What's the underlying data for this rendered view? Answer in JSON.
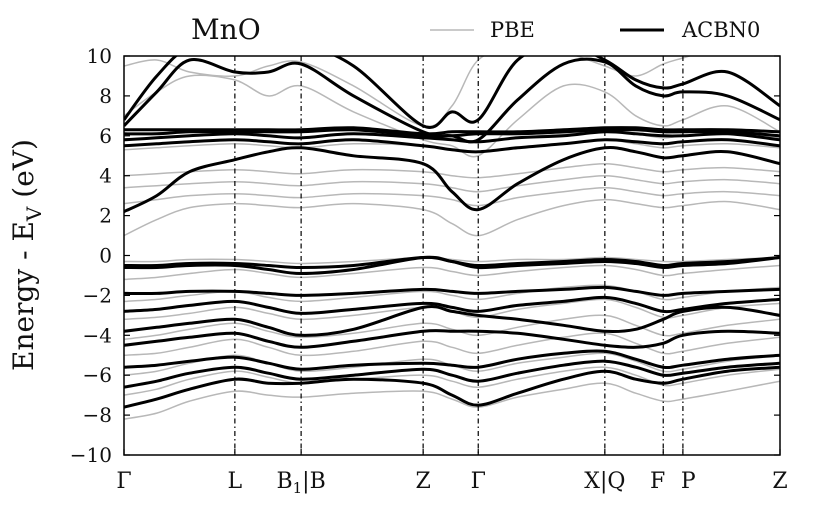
{
  "chart_data": {
    "type": "line",
    "title": "MnO",
    "ylabel": "Energy - E",
    "ylabel_sub": "V",
    "ylabel_tail": " (eV)",
    "ylim": [
      -10,
      10
    ],
    "yticks": [
      -10,
      -8,
      -6,
      -4,
      -2,
      0,
      2,
      4,
      6,
      8,
      10
    ],
    "xlim": [
      0,
      1
    ],
    "kpoints": [
      {
        "label": "Γ",
        "x": 0.0
      },
      {
        "label": "L",
        "x": 0.169
      },
      {
        "label": "B1|B",
        "x": 0.27
      },
      {
        "label": "Z",
        "x": 0.456
      },
      {
        "label": "Γ",
        "x": 0.54
      },
      {
        "label": "X|Q",
        "x": 0.733
      },
      {
        "label": "F",
        "x": 0.822
      },
      {
        "label": "P",
        "x": 0.852
      },
      {
        "label": "Z",
        "x": 1.0
      }
    ],
    "legend": {
      "position": "top-right",
      "entries": [
        {
          "name": "PBE",
          "color": "#b8b8b8"
        },
        {
          "name": "ACBN0",
          "color": "#000000"
        }
      ]
    },
    "x": [
      0,
      0.05,
      0.1,
      0.169,
      0.22,
      0.27,
      0.35,
      0.456,
      0.5,
      0.54,
      0.6,
      0.67,
      0.733,
      0.78,
      0.822,
      0.852,
      0.92,
      1.0
    ],
    "series": [
      {
        "name": "PBE",
        "color": "#b8b8b8",
        "bands": [
          [
            -8.2,
            -7.9,
            -7.3,
            -6.8,
            -7.0,
            -7.1,
            -6.9,
            -6.8,
            -7.2,
            -7.6,
            -7.1,
            -6.7,
            -6.4,
            -6.9,
            -7.3,
            -7.2,
            -6.8,
            -6.3
          ],
          [
            -7.0,
            -6.7,
            -6.2,
            -5.8,
            -6.1,
            -6.4,
            -6.2,
            -6.0,
            -6.3,
            -6.6,
            -6.2,
            -5.8,
            -5.6,
            -6.0,
            -6.5,
            -6.4,
            -6.0,
            -5.7
          ],
          [
            -6.0,
            -5.8,
            -5.4,
            -5.0,
            -5.4,
            -5.8,
            -5.6,
            -5.2,
            -5.5,
            -5.8,
            -5.4,
            -5.1,
            -4.9,
            -5.3,
            -5.8,
            -5.7,
            -5.3,
            -5.0
          ],
          [
            -5.0,
            -4.9,
            -4.6,
            -4.2,
            -4.6,
            -5.0,
            -4.8,
            -4.3,
            -4.6,
            -4.9,
            -4.5,
            -4.1,
            -3.9,
            -4.4,
            -4.9,
            -4.8,
            -4.4,
            -4.1
          ],
          [
            -4.2,
            -4.0,
            -3.7,
            -3.4,
            -3.8,
            -4.1,
            -3.9,
            -3.4,
            -3.7,
            -4.0,
            -3.6,
            -3.2,
            -3.0,
            -3.5,
            -4.0,
            -3.9,
            -3.5,
            -3.2
          ],
          [
            -3.2,
            -3.1,
            -2.9,
            -2.6,
            -2.9,
            -3.2,
            -3.0,
            -2.6,
            -2.8,
            -3.1,
            -2.7,
            -2.4,
            -2.2,
            -2.6,
            -3.1,
            -3.0,
            -2.6,
            -2.4
          ],
          [
            -2.3,
            -2.2,
            -2.0,
            -1.8,
            -2.1,
            -2.3,
            -2.1,
            -1.8,
            -2.0,
            -2.2,
            -1.9,
            -1.6,
            -1.5,
            -1.8,
            -2.2,
            -2.1,
            -1.8,
            -1.6
          ],
          [
            -1.2,
            -1.1,
            -0.9,
            -0.7,
            -0.9,
            -1.1,
            -0.9,
            -0.6,
            -0.8,
            -1.0,
            -0.8,
            -0.6,
            -0.5,
            -0.7,
            -1.0,
            -0.9,
            -0.7,
            -0.5
          ],
          [
            -0.3,
            -0.3,
            -0.2,
            -0.2,
            -0.3,
            -0.4,
            -0.3,
            -0.1,
            -0.2,
            -0.3,
            -0.2,
            -0.2,
            -0.1,
            -0.2,
            -0.3,
            -0.3,
            -0.2,
            -0.1
          ],
          [
            1.0,
            1.8,
            2.4,
            2.6,
            2.5,
            2.4,
            2.6,
            2.3,
            1.6,
            1.0,
            1.8,
            2.5,
            2.8,
            2.6,
            2.4,
            2.5,
            2.7,
            2.3
          ],
          [
            2.6,
            2.8,
            3.0,
            3.1,
            3.0,
            2.9,
            3.1,
            3.0,
            2.8,
            2.5,
            2.9,
            3.2,
            3.4,
            3.2,
            3.0,
            3.1,
            3.2,
            3.0
          ],
          [
            3.4,
            3.5,
            3.6,
            3.7,
            3.6,
            3.5,
            3.7,
            3.6,
            3.4,
            3.2,
            3.5,
            3.8,
            4.0,
            3.8,
            3.6,
            3.7,
            3.8,
            3.6
          ],
          [
            4.0,
            4.1,
            4.2,
            4.3,
            4.2,
            4.1,
            4.3,
            4.2,
            4.0,
            3.9,
            4.1,
            4.4,
            4.6,
            4.4,
            4.2,
            4.3,
            4.4,
            4.2
          ],
          [
            5.3,
            5.4,
            5.5,
            5.6,
            5.5,
            5.4,
            5.6,
            5.5,
            5.3,
            5.2,
            5.4,
            5.6,
            5.8,
            5.6,
            5.4,
            5.5,
            5.6,
            5.4
          ],
          [
            5.8,
            5.9,
            6.0,
            6.1,
            6.0,
            5.9,
            6.1,
            6.0,
            5.8,
            5.7,
            5.9,
            6.1,
            6.3,
            6.1,
            5.9,
            6.0,
            6.1,
            5.9
          ],
          [
            7.0,
            8.2,
            9.0,
            8.8,
            8.0,
            8.5,
            7.2,
            5.8,
            5.5,
            5.0,
            6.8,
            8.5,
            8.2,
            7.0,
            6.5,
            6.8,
            7.5,
            6.2
          ],
          [
            9.5,
            9.8,
            9.2,
            9.0,
            9.5,
            9.7,
            8.5,
            6.5,
            7.5,
            9.8,
            10.5,
            10.2,
            9.5,
            9.0,
            9.6,
            9.9,
            10.5,
            10.5
          ]
        ]
      },
      {
        "name": "ACBN0",
        "color": "#000000",
        "bands": [
          [
            -7.6,
            -7.2,
            -6.7,
            -6.2,
            -6.4,
            -6.4,
            -6.2,
            -6.4,
            -7.0,
            -7.5,
            -6.9,
            -6.2,
            -5.8,
            -6.2,
            -6.4,
            -6.2,
            -5.8,
            -5.6
          ],
          [
            -6.6,
            -6.3,
            -5.9,
            -5.6,
            -5.9,
            -6.2,
            -6.0,
            -5.7,
            -6.0,
            -6.3,
            -5.9,
            -5.5,
            -5.3,
            -5.6,
            -6.0,
            -5.9,
            -5.6,
            -5.4
          ],
          [
            -5.6,
            -5.5,
            -5.3,
            -5.1,
            -5.4,
            -5.7,
            -5.5,
            -5.4,
            -5.5,
            -5.6,
            -5.2,
            -4.9,
            -4.8,
            -5.2,
            -5.6,
            -5.5,
            -5.2,
            -5.0
          ],
          [
            -4.5,
            -4.3,
            -4.1,
            -3.9,
            -4.3,
            -4.6,
            -4.3,
            -3.8,
            -3.8,
            -3.8,
            -3.9,
            -4.2,
            -4.5,
            -4.6,
            -4.4,
            -4.0,
            -3.8,
            -3.9
          ],
          [
            -3.8,
            -3.6,
            -3.4,
            -3.2,
            -3.6,
            -4.0,
            -3.7,
            -2.6,
            -2.8,
            -3.0,
            -3.2,
            -3.5,
            -3.8,
            -3.7,
            -3.2,
            -2.8,
            -2.6,
            -3.0
          ],
          [
            -2.8,
            -2.7,
            -2.5,
            -2.3,
            -2.6,
            -2.9,
            -2.7,
            -2.4,
            -2.6,
            -2.8,
            -2.5,
            -2.3,
            -2.1,
            -2.4,
            -2.8,
            -2.7,
            -2.4,
            -2.2
          ],
          [
            -1.9,
            -1.9,
            -1.8,
            -1.8,
            -1.9,
            -2.0,
            -1.9,
            -1.7,
            -1.8,
            -1.9,
            -1.8,
            -1.7,
            -1.6,
            -1.8,
            -2.0,
            -1.9,
            -1.8,
            -1.7
          ],
          [
            -0.6,
            -0.6,
            -0.5,
            -0.5,
            -0.7,
            -0.9,
            -0.7,
            -0.1,
            -0.3,
            -0.6,
            -0.5,
            -0.4,
            -0.3,
            -0.4,
            -0.6,
            -0.5,
            -0.4,
            -0.1
          ],
          [
            -0.5,
            -0.5,
            -0.4,
            -0.4,
            -0.5,
            -0.6,
            -0.5,
            -0.1,
            -0.3,
            -0.5,
            -0.4,
            -0.3,
            -0.2,
            -0.3,
            -0.5,
            -0.4,
            -0.3,
            -0.1
          ],
          [
            2.2,
            3.0,
            4.2,
            4.8,
            5.2,
            5.4,
            5.0,
            4.6,
            3.2,
            2.3,
            3.6,
            4.8,
            5.4,
            5.2,
            4.9,
            5.0,
            5.2,
            4.6
          ],
          [
            5.5,
            5.6,
            5.7,
            5.8,
            5.7,
            5.6,
            5.8,
            5.5,
            5.3,
            5.2,
            5.4,
            5.6,
            5.8,
            5.7,
            5.6,
            5.7,
            5.8,
            5.5
          ],
          [
            5.8,
            5.9,
            6.0,
            6.1,
            6.0,
            5.9,
            6.1,
            5.9,
            5.8,
            5.7,
            5.9,
            6.0,
            6.2,
            6.1,
            6.0,
            6.0,
            6.1,
            5.8
          ],
          [
            6.1,
            6.1,
            6.2,
            6.2,
            6.2,
            6.2,
            6.3,
            6.0,
            6.0,
            6.1,
            6.1,
            6.2,
            6.3,
            6.3,
            6.2,
            6.2,
            6.2,
            6.0
          ],
          [
            6.3,
            6.3,
            6.3,
            6.3,
            6.3,
            6.3,
            6.4,
            6.1,
            6.2,
            6.2,
            6.2,
            6.3,
            6.4,
            6.4,
            6.3,
            6.3,
            6.3,
            6.2
          ],
          [
            6.5,
            8.2,
            9.8,
            9.2,
            9.2,
            9.6,
            8.0,
            6.2,
            6.0,
            5.8,
            7.8,
            9.6,
            9.7,
            8.5,
            8.0,
            8.2,
            8.0,
            6.8
          ],
          [
            6.8,
            9.0,
            10.4,
            10.2,
            10.4,
            10.6,
            9.5,
            6.5,
            7.2,
            6.8,
            9.8,
            10.6,
            9.8,
            8.8,
            8.4,
            8.6,
            9.2,
            7.5
          ]
        ]
      }
    ]
  }
}
